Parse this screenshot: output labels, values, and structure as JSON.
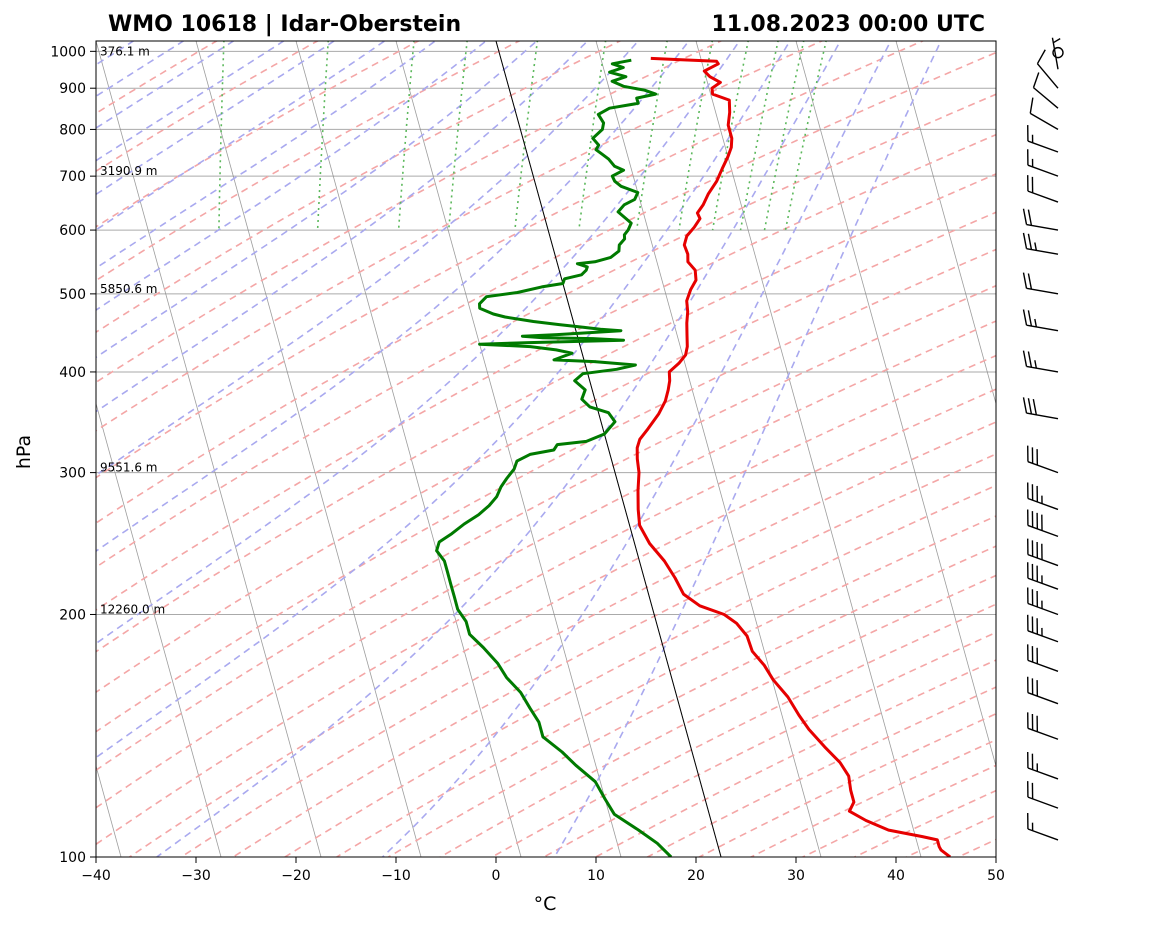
{
  "chart_data": {
    "type": "line",
    "title_left": "WMO 10618 | Idar-Oberstein",
    "title_right": "11.08.2023 00:00 UTC",
    "xlabel": "°C",
    "ylabel": "hPa",
    "xlim": [
      -40,
      50
    ],
    "ylim": [
      1030,
      100
    ],
    "y_scale": "log",
    "x_ticks": [
      "−40",
      "−30",
      "−20",
      "−10",
      "0",
      "10",
      "20",
      "30",
      "40",
      "50"
    ],
    "y_ticks": [
      "100",
      "200",
      "300",
      "400",
      "500",
      "600",
      "700",
      "800",
      "900",
      "1000"
    ],
    "height_labels": [
      {
        "p": 200,
        "label": "12260.0 m"
      },
      {
        "p": 300,
        "label": "9551.6 m"
      },
      {
        "p": 500,
        "label": "5850.6 m"
      },
      {
        "p": 700,
        "label": "3190.9 m"
      },
      {
        "p": 985,
        "label": "376.1 m"
      }
    ],
    "colors": {
      "temperature": "#e60000",
      "dewpoint": "#007a00",
      "dry_adiabats": "#f4a6a6",
      "moist_adiabats": "#a9a9ef",
      "mixing_ratio": "#5cb85c",
      "isobars": "#aaaaaa",
      "isotherms": "#8c8c8c"
    },
    "series": [
      {
        "key": "temperature",
        "points": [
          [
            15.0,
            980
          ],
          [
            18.0,
            976
          ],
          [
            21.5,
            972
          ],
          [
            21.6,
            965
          ],
          [
            20.0,
            945
          ],
          [
            20.4,
            930
          ],
          [
            21.3,
            915
          ],
          [
            20.3,
            900
          ],
          [
            20.2,
            885
          ],
          [
            21.7,
            870
          ],
          [
            21.4,
            840
          ],
          [
            20.9,
            810
          ],
          [
            20.9,
            780
          ],
          [
            20.6,
            760
          ],
          [
            20.0,
            740
          ],
          [
            19.1,
            715
          ],
          [
            18.2,
            690
          ],
          [
            17.0,
            665
          ],
          [
            16.2,
            645
          ],
          [
            15.4,
            630
          ],
          [
            15.5,
            620
          ],
          [
            14.7,
            605
          ],
          [
            13.7,
            590
          ],
          [
            13.2,
            575
          ],
          [
            13.3,
            560
          ],
          [
            13.1,
            548
          ],
          [
            13.6,
            535
          ],
          [
            13.4,
            520
          ],
          [
            12.6,
            506
          ],
          [
            11.9,
            490
          ],
          [
            11.7,
            475
          ],
          [
            11.3,
            460
          ],
          [
            11.0,
            445
          ],
          [
            10.7,
            430
          ],
          [
            10.3,
            420
          ],
          [
            9.4,
            410
          ],
          [
            8.2,
            400
          ],
          [
            8.0,
            390
          ],
          [
            7.6,
            380
          ],
          [
            7.0,
            368
          ],
          [
            6.0,
            355
          ],
          [
            4.5,
            340
          ],
          [
            3.4,
            330
          ],
          [
            2.9,
            322
          ],
          [
            2.6,
            312
          ],
          [
            2.4,
            300
          ],
          [
            1.8,
            285
          ],
          [
            1.3,
            270
          ],
          [
            1.0,
            258
          ],
          [
            1.5,
            245
          ],
          [
            2.5,
            233
          ],
          [
            3.1,
            222
          ],
          [
            3.5,
            212
          ],
          [
            4.8,
            205
          ],
          [
            7.0,
            200
          ],
          [
            8.0,
            195
          ],
          [
            8.7,
            188
          ],
          [
            8.8,
            180
          ],
          [
            9.6,
            173
          ],
          [
            10.1,
            166
          ],
          [
            11.1,
            158
          ],
          [
            11.7,
            150
          ],
          [
            12.3,
            144
          ],
          [
            13.4,
            137
          ],
          [
            14.5,
            131
          ],
          [
            15.0,
            126
          ],
          [
            14.8,
            121
          ],
          [
            14.8,
            117
          ],
          [
            14.1,
            114
          ],
          [
            15.5,
            111
          ],
          [
            17.5,
            108
          ],
          [
            20.7,
            106
          ],
          [
            22.1,
            105
          ],
          [
            22.1,
            103
          ],
          [
            22.2,
            102
          ],
          [
            22.9,
            100
          ]
        ]
      },
      {
        "key": "dewpoint",
        "points": [
          [
            13.0,
            975
          ],
          [
            11.0,
            965
          ],
          [
            12.0,
            955
          ],
          [
            10.5,
            942
          ],
          [
            12.0,
            930
          ],
          [
            10.5,
            918
          ],
          [
            11.5,
            905
          ],
          [
            13.5,
            895
          ],
          [
            14.5,
            885
          ],
          [
            12.5,
            875
          ],
          [
            12.5,
            862
          ],
          [
            9.5,
            850
          ],
          [
            8.2,
            835
          ],
          [
            8.5,
            815
          ],
          [
            8.2,
            800
          ],
          [
            7.0,
            780
          ],
          [
            7.4,
            765
          ],
          [
            7.0,
            755
          ],
          [
            7.5,
            745
          ],
          [
            8.0,
            735
          ],
          [
            8.4,
            720
          ],
          [
            9.2,
            712
          ],
          [
            7.9,
            700
          ],
          [
            8.0,
            690
          ],
          [
            8.5,
            680
          ],
          [
            10.0,
            668
          ],
          [
            9.5,
            655
          ],
          [
            8.3,
            645
          ],
          [
            7.5,
            632
          ],
          [
            8.0,
            622
          ],
          [
            8.5,
            612
          ],
          [
            8.0,
            600
          ],
          [
            7.5,
            592
          ],
          [
            7.4,
            585
          ],
          [
            6.7,
            575
          ],
          [
            6.5,
            565
          ],
          [
            5.5,
            555
          ],
          [
            3.8,
            548
          ],
          [
            2.0,
            545
          ],
          [
            2.9,
            540
          ],
          [
            2.7,
            535
          ],
          [
            2.1,
            528
          ],
          [
            0.3,
            522
          ],
          [
            0.0,
            515
          ],
          [
            -2.2,
            510
          ],
          [
            -4.8,
            502
          ],
          [
            -8.0,
            496
          ],
          [
            -8.9,
            486
          ],
          [
            -9.0,
            480
          ],
          [
            -7.8,
            472
          ],
          [
            -6.7,
            468
          ],
          [
            -4.0,
            462
          ],
          [
            -1.5,
            458
          ],
          [
            0.5,
            455
          ],
          [
            2.5,
            452
          ],
          [
            4.5,
            450
          ],
          [
            2.0,
            448
          ],
          [
            -2.0,
            445
          ],
          [
            -5.5,
            443
          ],
          [
            -3.5,
            441
          ],
          [
            1.5,
            440
          ],
          [
            4.5,
            438
          ],
          [
            -5.0,
            435
          ],
          [
            -10.0,
            433
          ],
          [
            -5.0,
            430
          ],
          [
            -2.5,
            426
          ],
          [
            -1.0,
            422
          ],
          [
            -2.0,
            418
          ],
          [
            -3.0,
            414
          ],
          [
            1.0,
            412
          ],
          [
            5.0,
            408
          ],
          [
            3.0,
            403
          ],
          [
            -0.5,
            398
          ],
          [
            -1.5,
            390
          ],
          [
            -0.7,
            380
          ],
          [
            -1.3,
            370
          ],
          [
            -0.7,
            362
          ],
          [
            1.0,
            356
          ],
          [
            1.4,
            347
          ],
          [
            0.0,
            335
          ],
          [
            -2.0,
            328
          ],
          [
            -5.0,
            325
          ],
          [
            -5.5,
            320
          ],
          [
            -8.0,
            316
          ],
          [
            -9.5,
            310
          ],
          [
            -10.0,
            303
          ],
          [
            -11.0,
            295
          ],
          [
            -11.8,
            288
          ],
          [
            -12.5,
            280
          ],
          [
            -13.5,
            273
          ],
          [
            -14.8,
            266
          ],
          [
            -16.5,
            259
          ],
          [
            -18.0,
            252
          ],
          [
            -19.5,
            246
          ],
          [
            -20.0,
            240
          ],
          [
            -19.5,
            233
          ],
          [
            -19.5,
            226
          ],
          [
            -19.5,
            218
          ],
          [
            -19.5,
            210
          ],
          [
            -19.5,
            203
          ],
          [
            -19.0,
            196
          ],
          [
            -19.0,
            189
          ],
          [
            -18.0,
            182
          ],
          [
            -17.0,
            174
          ],
          [
            -16.5,
            167
          ],
          [
            -15.5,
            160
          ],
          [
            -15.0,
            153
          ],
          [
            -14.5,
            147
          ],
          [
            -14.5,
            141
          ],
          [
            -13.0,
            135
          ],
          [
            -12.0,
            130
          ],
          [
            -10.5,
            124
          ],
          [
            -10.0,
            118
          ],
          [
            -9.5,
            113
          ],
          [
            -7.5,
            108
          ],
          [
            -6.0,
            104
          ],
          [
            -5.0,
            100
          ]
        ]
      }
    ],
    "wind_barbs": [
      {
        "p": 985,
        "dir": 30,
        "kt": 0
      },
      {
        "p": 950,
        "dir": 350,
        "kt": 5
      },
      {
        "p": 900,
        "dir": 320,
        "kt": 10
      },
      {
        "p": 850,
        "dir": 310,
        "kt": 10
      },
      {
        "p": 800,
        "dir": 300,
        "kt": 10
      },
      {
        "p": 750,
        "dir": 290,
        "kt": 15
      },
      {
        "p": 700,
        "dir": 290,
        "kt": 15
      },
      {
        "p": 650,
        "dir": 290,
        "kt": 20
      },
      {
        "p": 600,
        "dir": 280,
        "kt": 20
      },
      {
        "p": 560,
        "dir": 280,
        "kt": 25
      },
      {
        "p": 500,
        "dir": 280,
        "kt": 20
      },
      {
        "p": 450,
        "dir": 280,
        "kt": 25
      },
      {
        "p": 400,
        "dir": 280,
        "kt": 25
      },
      {
        "p": 350,
        "dir": 280,
        "kt": 30
      },
      {
        "p": 300,
        "dir": 290,
        "kt": 30
      },
      {
        "p": 270,
        "dir": 290,
        "kt": 35
      },
      {
        "p": 250,
        "dir": 290,
        "kt": 40
      },
      {
        "p": 230,
        "dir": 290,
        "kt": 40
      },
      {
        "p": 215,
        "dir": 290,
        "kt": 35
      },
      {
        "p": 200,
        "dir": 290,
        "kt": 35
      },
      {
        "p": 185,
        "dir": 290,
        "kt": 35
      },
      {
        "p": 170,
        "dir": 290,
        "kt": 30
      },
      {
        "p": 155,
        "dir": 290,
        "kt": 30
      },
      {
        "p": 140,
        "dir": 290,
        "kt": 30
      },
      {
        "p": 125,
        "dir": 290,
        "kt": 25
      },
      {
        "p": 115,
        "dir": 290,
        "kt": 20
      },
      {
        "p": 105,
        "dir": 290,
        "kt": 15
      }
    ]
  }
}
